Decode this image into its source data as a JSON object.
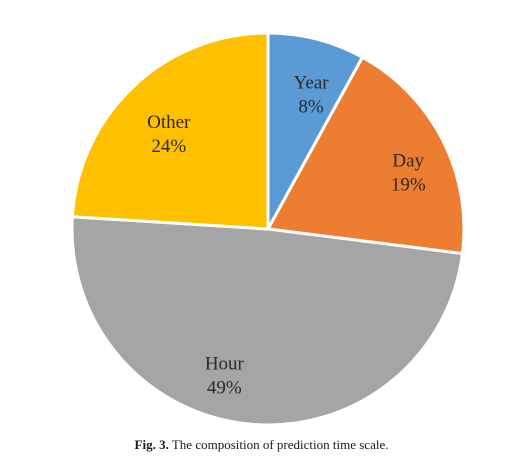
{
  "chart_data": {
    "type": "pie",
    "slices": [
      {
        "label": "Year",
        "value": 8,
        "value_label": "8%",
        "color": "#5B9BD5"
      },
      {
        "label": "Day",
        "value": 19,
        "value_label": "19%",
        "color": "#ED7D31"
      },
      {
        "label": "Hour",
        "value": 49,
        "value_label": "49%",
        "color": "#A5A5A5"
      },
      {
        "label": "Other",
        "value": 24,
        "value_label": "24%",
        "color": "#FFC000"
      }
    ],
    "title": "",
    "legend": "none"
  },
  "caption": {
    "fig_label": "Fig. 3.",
    "text": "The composition of prediction time scale."
  }
}
